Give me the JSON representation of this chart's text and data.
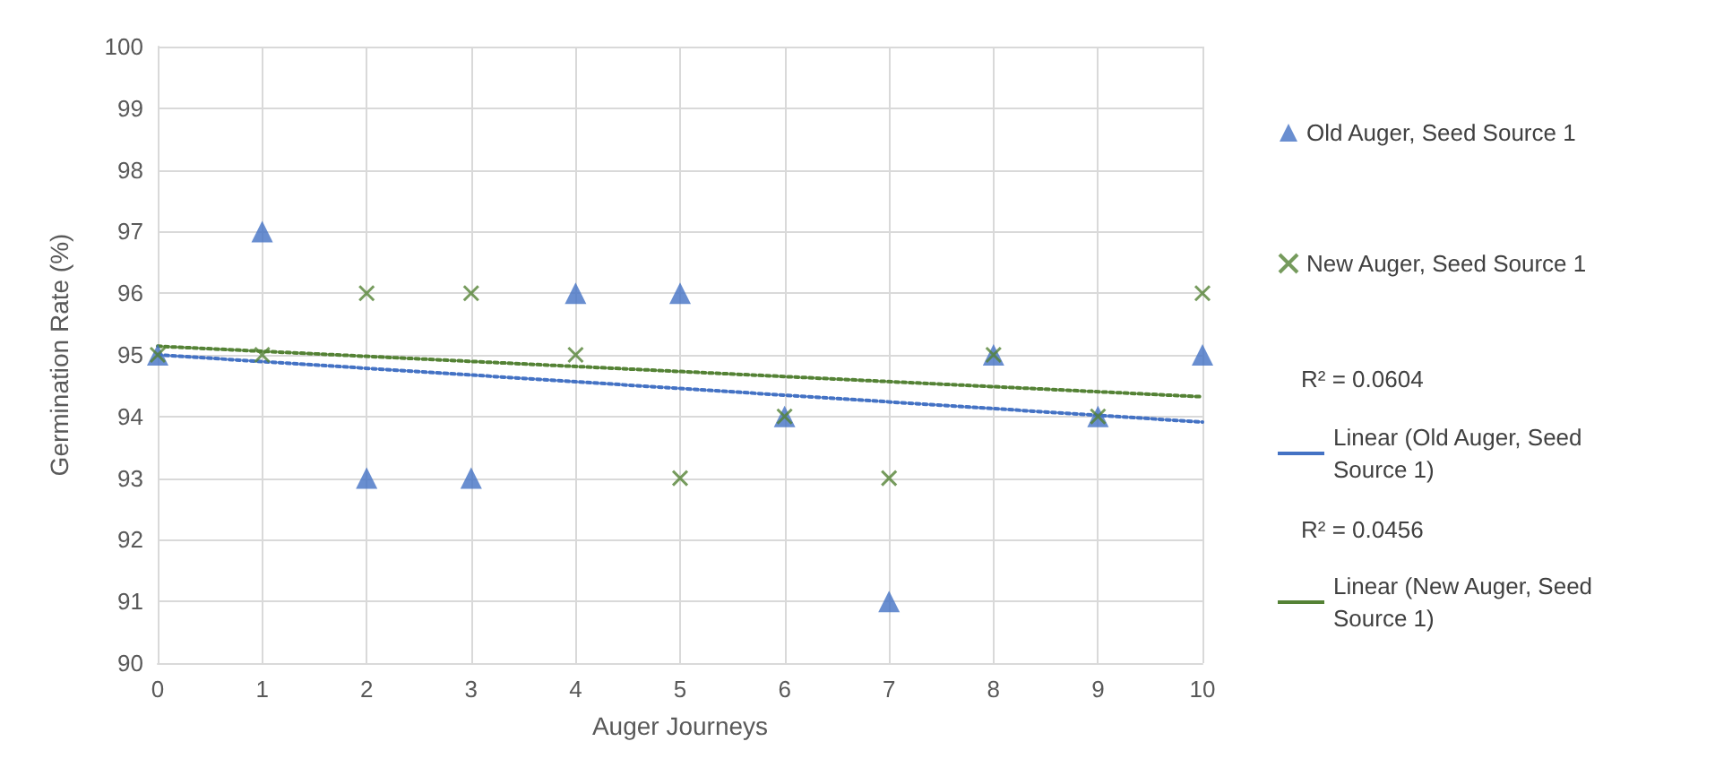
{
  "chart_data": {
    "type": "scatter",
    "xlabel": "Auger Journeys",
    "ylabel": "Germination Rate (%)",
    "x": [
      0,
      1,
      2,
      3,
      4,
      5,
      6,
      7,
      8,
      9,
      10
    ],
    "series": [
      {
        "name": "Old Auger, Seed Source 1",
        "color": "#4472c4",
        "marker": "triangle",
        "values": [
          95,
          97,
          93,
          93,
          96,
          96,
          94,
          91,
          95,
          94,
          95
        ]
      },
      {
        "name": "New Auger, Seed Source 1",
        "color": "#548235",
        "marker": "cross",
        "values": [
          95,
          95,
          96,
          96,
          95,
          93,
          94,
          93,
          95,
          94,
          96
        ]
      },
      {
        "name": "Linear (Old Auger, Seed Source 1)",
        "type": "line",
        "color": "#4472c4",
        "line_style": "dotted",
        "marker": "none",
        "values": [
          95.0,
          null,
          null,
          null,
          null,
          null,
          null,
          null,
          null,
          null,
          93.91
        ]
      },
      {
        "name": "Linear (New Auger, Seed Source 1)",
        "type": "line",
        "color": "#548235",
        "line_style": "dotted",
        "marker": "none",
        "values": [
          95.14,
          null,
          null,
          null,
          null,
          null,
          null,
          null,
          null,
          null,
          94.32
        ]
      }
    ],
    "annotations": [
      "R² = 0.0604",
      "R² = 0.0456"
    ],
    "xlim": [
      0,
      10
    ],
    "xticks": [
      0,
      1,
      2,
      3,
      4,
      5,
      6,
      7,
      8,
      9,
      10
    ],
    "ylim": [
      90,
      100
    ],
    "yticks": [
      90,
      91,
      92,
      93,
      94,
      95,
      96,
      97,
      98,
      99,
      100
    ],
    "grid": true,
    "legend": "right"
  }
}
